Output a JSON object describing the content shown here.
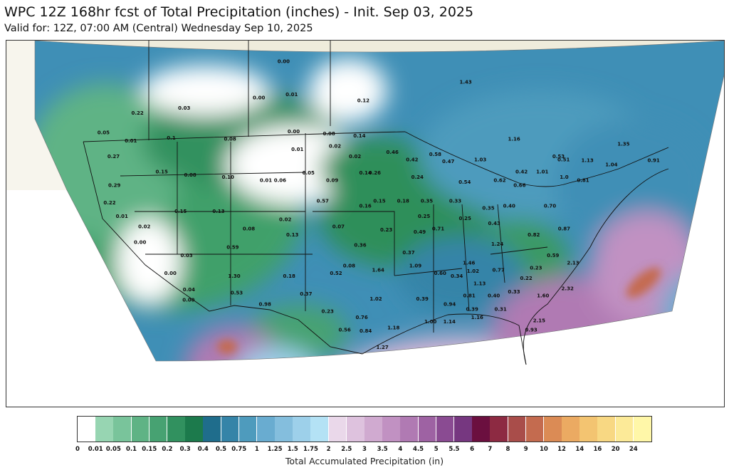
{
  "title": "WPC 12Z 168hr fcst of Total Precipitation (inches) - Init. Sep 03, 2025",
  "subtitle": "Valid for: 12Z, 07:00 AM (Central) Wednesday Sep 10, 2025",
  "colorbar": {
    "label": "Total Accumulated Precipitation (in)",
    "ticks": [
      "0",
      "0.01",
      "0.05",
      "0.1",
      "0.15",
      "0.2",
      "0.3",
      "0.4",
      "0.5",
      "0.75",
      "1",
      "1.25",
      "1.5",
      "1.75",
      "2",
      "2.5",
      "3",
      "3.5",
      "4",
      "4.5",
      "5",
      "5.5",
      "6",
      "7",
      "8",
      "9",
      "10",
      "12",
      "14",
      "16",
      "20",
      "24"
    ],
    "colors": [
      "#ffffff",
      "#97d5b2",
      "#79c49b",
      "#5fb385",
      "#47a272",
      "#31915f",
      "#1c7a4c",
      "#1f6d8c",
      "#3584a8",
      "#4e9bbd",
      "#69acd0",
      "#84bedd",
      "#9dd0ea",
      "#b4e2f5",
      "#ead8ea",
      "#dec2de",
      "#d0aad0",
      "#c191c2",
      "#b07ab3",
      "#9e62a3",
      "#8a4b92",
      "#763780",
      "#6b0f3f",
      "#8d2a42",
      "#a94d4a",
      "#c46b4f",
      "#db8b55",
      "#ebaa62",
      "#f3c471",
      "#f8d883",
      "#fcea98",
      "#fff7a8"
    ]
  },
  "map": {
    "land_color": "#efecdc",
    "labels": [
      {
        "t": "0.03",
        "lon": -115.5,
        "lat": 50.5
      },
      {
        "t": "0.22",
        "lon": -120.5,
        "lat": 50.0
      },
      {
        "t": "0.00",
        "lon": -107.5,
        "lat": 51.5
      },
      {
        "t": "0.01",
        "lon": -104.0,
        "lat": 51.8
      },
      {
        "t": "0.00",
        "lon": -104.5,
        "lat": 55.0
      },
      {
        "t": "0.12",
        "lon": -96.5,
        "lat": 51.2
      },
      {
        "t": "1.43",
        "lon": -85.5,
        "lat": 53.0
      },
      {
        "t": "0.01",
        "lon": -121.5,
        "lat": 47.3
      },
      {
        "t": "0.05",
        "lon": -124.3,
        "lat": 48.1
      },
      {
        "t": "0.1",
        "lon": -117.2,
        "lat": 47.6
      },
      {
        "t": "0.08",
        "lon": -111.0,
        "lat": 47.5
      },
      {
        "t": "0.00",
        "lon": -104.2,
        "lat": 48.2
      },
      {
        "t": "0.08",
        "lon": -100.5,
        "lat": 48.0
      },
      {
        "t": "0.14",
        "lon": -97.3,
        "lat": 47.8
      },
      {
        "t": "0.02",
        "lon": -100.0,
        "lat": 46.8
      },
      {
        "t": "0.01",
        "lon": -104.0,
        "lat": 46.5
      },
      {
        "t": "0.02",
        "lon": -98.0,
        "lat": 45.8
      },
      {
        "t": "0.46",
        "lon": -94.0,
        "lat": 46.2
      },
      {
        "t": "0.42",
        "lon": -92.0,
        "lat": 45.5
      },
      {
        "t": "0.58",
        "lon": -89.5,
        "lat": 46.0
      },
      {
        "t": "0.47",
        "lon": -88.2,
        "lat": 45.3
      },
      {
        "t": "1.03",
        "lon": -84.8,
        "lat": 45.5
      },
      {
        "t": "1.16",
        "lon": -81.0,
        "lat": 47.5
      },
      {
        "t": "0.27",
        "lon": -123.5,
        "lat": 45.8
      },
      {
        "t": "0.15",
        "lon": -118.5,
        "lat": 44.3
      },
      {
        "t": "0.08",
        "lon": -115.5,
        "lat": 44.0
      },
      {
        "t": "0.10",
        "lon": -111.5,
        "lat": 43.8
      },
      {
        "t": "0.29",
        "lon": -123.5,
        "lat": 43.0
      },
      {
        "t": "0.01",
        "lon": -107.5,
        "lat": 43.5
      },
      {
        "t": "0.06",
        "lon": -106.0,
        "lat": 43.5
      },
      {
        "t": "0.05",
        "lon": -103.0,
        "lat": 44.2
      },
      {
        "t": "0.09",
        "lon": -100.5,
        "lat": 43.5
      },
      {
        "t": "0.14",
        "lon": -97.0,
        "lat": 44.2
      },
      {
        "t": "0.26",
        "lon": -96.0,
        "lat": 44.2
      },
      {
        "t": "0.24",
        "lon": -91.5,
        "lat": 43.8
      },
      {
        "t": "0.54",
        "lon": -86.5,
        "lat": 43.3
      },
      {
        "t": "0.62",
        "lon": -82.8,
        "lat": 43.5
      },
      {
        "t": "0.42",
        "lon": -80.5,
        "lat": 44.3
      },
      {
        "t": "1.01",
        "lon": -78.3,
        "lat": 44.3
      },
      {
        "t": "1.0",
        "lon": -76.0,
        "lat": 43.8
      },
      {
        "t": "0.81",
        "lon": -74.0,
        "lat": 43.5
      },
      {
        "t": "1.04",
        "lon": -71.0,
        "lat": 45.0
      },
      {
        "t": "1.13",
        "lon": -73.5,
        "lat": 45.4
      },
      {
        "t": "1.35",
        "lon": -69.5,
        "lat": 47.0
      },
      {
        "t": "0.91",
        "lon": -66.5,
        "lat": 45.4
      },
      {
        "t": "0.53",
        "lon": -76.5,
        "lat": 45.8
      },
      {
        "t": "0.51",
        "lon": -76.0,
        "lat": 45.5
      },
      {
        "t": "0.66",
        "lon": -80.7,
        "lat": 43.0
      },
      {
        "t": "0.22",
        "lon": -124.0,
        "lat": 41.3
      },
      {
        "t": "0.01",
        "lon": -122.7,
        "lat": 40.0
      },
      {
        "t": "0.02",
        "lon": -120.5,
        "lat": 39.0
      },
      {
        "t": "0.15",
        "lon": -116.5,
        "lat": 40.5
      },
      {
        "t": "0.13",
        "lon": -112.5,
        "lat": 40.5
      },
      {
        "t": "0.57",
        "lon": -101.5,
        "lat": 41.5
      },
      {
        "t": "0.16",
        "lon": -97.0,
        "lat": 41.0
      },
      {
        "t": "0.15",
        "lon": -95.5,
        "lat": 41.5
      },
      {
        "t": "0.18",
        "lon": -93.0,
        "lat": 41.5
      },
      {
        "t": "0.35",
        "lon": -90.5,
        "lat": 41.5
      },
      {
        "t": "0.33",
        "lon": -87.5,
        "lat": 41.5
      },
      {
        "t": "0.40",
        "lon": -81.8,
        "lat": 41.0
      },
      {
        "t": "0.70",
        "lon": -77.5,
        "lat": 41.0
      },
      {
        "t": "0.35",
        "lon": -84.0,
        "lat": 40.8
      },
      {
        "t": "0.00",
        "lon": -121.2,
        "lat": 37.5
      },
      {
        "t": "0.08",
        "lon": -109.5,
        "lat": 38.8
      },
      {
        "t": "0.02",
        "lon": -105.5,
        "lat": 39.7
      },
      {
        "t": "0.07",
        "lon": -100.0,
        "lat": 39.0
      },
      {
        "t": "0.23",
        "lon": -95.0,
        "lat": 38.7
      },
      {
        "t": "0.49",
        "lon": -91.5,
        "lat": 38.5
      },
      {
        "t": "0.71",
        "lon": -89.5,
        "lat": 38.8
      },
      {
        "t": "0.25",
        "lon": -90.8,
        "lat": 40.0
      },
      {
        "t": "0.25",
        "lon": -86.5,
        "lat": 39.8
      },
      {
        "t": "0.43",
        "lon": -83.5,
        "lat": 39.3
      },
      {
        "t": "0.82",
        "lon": -79.5,
        "lat": 38.2
      },
      {
        "t": "0.87",
        "lon": -76.2,
        "lat": 38.8
      },
      {
        "t": "0.13",
        "lon": -105.0,
        "lat": 38.2
      },
      {
        "t": "0.59",
        "lon": -111.5,
        "lat": 37.0
      },
      {
        "t": "0.03",
        "lon": -116.5,
        "lat": 36.2
      },
      {
        "t": "0.36",
        "lon": -98.0,
        "lat": 37.2
      },
      {
        "t": "0.37",
        "lon": -93.0,
        "lat": 36.5
      },
      {
        "t": "1.24",
        "lon": -83.5,
        "lat": 37.3
      },
      {
        "t": "0.59",
        "lon": -77.8,
        "lat": 36.2
      },
      {
        "t": "0.08",
        "lon": -99.5,
        "lat": 35.2
      },
      {
        "t": "1.46",
        "lon": -86.8,
        "lat": 35.5
      },
      {
        "t": "0.00",
        "lon": -118.5,
        "lat": 34.5
      },
      {
        "t": "1.30",
        "lon": -111.8,
        "lat": 34.2
      },
      {
        "t": "0.18",
        "lon": -106.0,
        "lat": 34.2
      },
      {
        "t": "0.52",
        "lon": -101.0,
        "lat": 34.5
      },
      {
        "t": "1.64",
        "lon": -96.5,
        "lat": 34.8
      },
      {
        "t": "1.09",
        "lon": -92.5,
        "lat": 35.2
      },
      {
        "t": "0.60",
        "lon": -90.0,
        "lat": 34.5
      },
      {
        "t": "0.34",
        "lon": -88.3,
        "lat": 34.2
      },
      {
        "t": "1.02",
        "lon": -86.5,
        "lat": 34.7
      },
      {
        "t": "0.77",
        "lon": -83.8,
        "lat": 34.8
      },
      {
        "t": "1.13",
        "lon": -86.0,
        "lat": 33.5
      },
      {
        "t": "0.22",
        "lon": -81.0,
        "lat": 34.0
      },
      {
        "t": "0.23",
        "lon": -79.8,
        "lat": 35.0
      },
      {
        "t": "2.13",
        "lon": -75.8,
        "lat": 35.5
      },
      {
        "t": "0.04",
        "lon": -116.8,
        "lat": 32.9
      },
      {
        "t": "0.00",
        "lon": -117.0,
        "lat": 31.9
      },
      {
        "t": "0.53",
        "lon": -111.8,
        "lat": 32.6
      },
      {
        "t": "0.37",
        "lon": -104.5,
        "lat": 32.5
      },
      {
        "t": "1.02",
        "lon": -97.2,
        "lat": 32.0
      },
      {
        "t": "0.39",
        "lon": -92.3,
        "lat": 32.0
      },
      {
        "t": "0.94",
        "lon": -89.5,
        "lat": 31.5
      },
      {
        "t": "0.81",
        "lon": -87.3,
        "lat": 32.3
      },
      {
        "t": "0.40",
        "lon": -84.7,
        "lat": 32.3
      },
      {
        "t": "0.33",
        "lon": -82.5,
        "lat": 32.7
      },
      {
        "t": "1.60",
        "lon": -79.5,
        "lat": 32.3
      },
      {
        "t": "2.32",
        "lon": -76.8,
        "lat": 33.0
      },
      {
        "t": "0.98",
        "lon": -109.0,
        "lat": 31.5
      },
      {
        "t": "0.23",
        "lon": -102.5,
        "lat": 30.8
      },
      {
        "t": "0.76",
        "lon": -99.0,
        "lat": 30.2
      },
      {
        "t": "0.39",
        "lon": -87.2,
        "lat": 31.0
      },
      {
        "t": "0.31",
        "lon": -84.2,
        "lat": 31.0
      },
      {
        "t": "1.16",
        "lon": -86.8,
        "lat": 30.2
      },
      {
        "t": "1.14",
        "lon": -89.8,
        "lat": 29.8
      },
      {
        "t": "1.00",
        "lon": -91.8,
        "lat": 29.8
      },
      {
        "t": "0.56",
        "lon": -101.0,
        "lat": 29.0
      },
      {
        "t": "0.84",
        "lon": -98.8,
        "lat": 28.9
      },
      {
        "t": "1.18",
        "lon": -95.8,
        "lat": 29.2
      },
      {
        "t": "0.93",
        "lon": -81.3,
        "lat": 29.0
      },
      {
        "t": "2.15",
        "lon": -80.3,
        "lat": 29.9
      },
      {
        "t": "1.27",
        "lon": -97.3,
        "lat": 27.3
      }
    ]
  }
}
